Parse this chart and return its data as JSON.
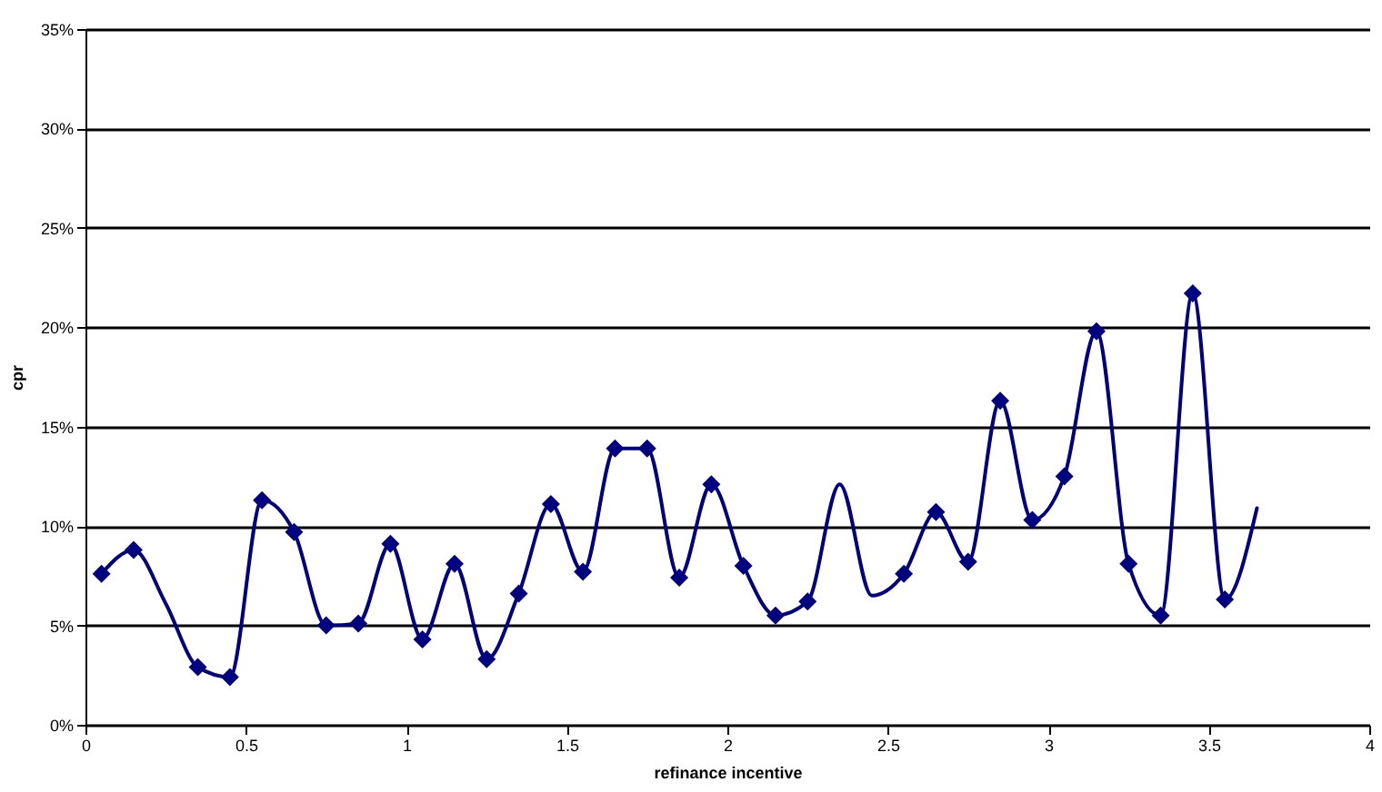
{
  "chart_data": {
    "type": "line",
    "xlabel": "refinance incentive",
    "ylabel": "cpr",
    "series": [
      {
        "color": "#000080",
        "marker": "none",
        "x": [
          0.05,
          0.15,
          0.25,
          0.35,
          0.45,
          0.55,
          0.65,
          0.75,
          0.85,
          0.95,
          1.05,
          1.15,
          1.25,
          1.35,
          1.45,
          1.55,
          1.65,
          1.75,
          1.85,
          1.95,
          2.05,
          2.15,
          2.25,
          2.35,
          2.45,
          2.55,
          2.65,
          2.75,
          2.85,
          2.95,
          3.05,
          3.15,
          3.25,
          3.35,
          3.45,
          3.55,
          3.65
        ],
        "values": [
          7.6,
          8.8,
          6.1,
          2.9,
          2.4,
          11.3,
          9.7,
          5.0,
          5.1,
          9.1,
          4.3,
          8.1,
          3.3,
          6.6,
          11.1,
          7.7,
          13.9,
          13.9,
          7.4,
          12.1,
          8.0,
          5.5,
          6.2,
          12.1,
          6.5,
          7.6,
          10.7,
          8.2,
          16.3,
          10.3,
          12.5,
          19.8,
          8.1,
          5.5,
          21.7,
          6.3,
          10.9
        ]
      },
      {
        "type": "scatter",
        "color": "#000080",
        "marker": "diamond",
        "x": [
          0.05,
          0.15,
          0.35,
          0.45,
          0.55,
          0.65,
          0.75,
          0.85,
          0.95,
          1.05,
          1.15,
          1.25,
          1.35,
          1.45,
          1.55,
          1.65,
          1.75,
          1.85,
          1.95,
          2.05,
          2.15,
          2.25,
          2.55,
          2.65,
          2.75,
          2.85,
          2.95,
          3.05,
          3.15,
          3.25,
          3.35,
          3.45,
          3.55
        ],
        "values": [
          7.6,
          8.8,
          2.9,
          2.4,
          11.3,
          9.7,
          5.0,
          5.1,
          9.1,
          4.3,
          8.1,
          3.3,
          6.6,
          11.1,
          7.7,
          13.9,
          13.9,
          7.4,
          12.1,
          8.0,
          5.5,
          6.2,
          7.6,
          10.7,
          8.2,
          16.3,
          10.3,
          12.5,
          19.8,
          8.1,
          5.5,
          21.7,
          6.3
        ]
      }
    ],
    "xlim": [
      0,
      4
    ],
    "xticks": [
      0,
      0.5,
      1,
      1.5,
      2,
      2.5,
      3,
      3.5,
      4
    ],
    "ylim": [
      0,
      35
    ],
    "yticks": [
      {
        "value": 0,
        "label": "0%"
      },
      {
        "value": 5,
        "label": "5%"
      },
      {
        "value": 10,
        "label": "10%"
      },
      {
        "value": 15,
        "label": "15%"
      },
      {
        "value": 20,
        "label": "20%"
      },
      {
        "value": 25,
        "label": "25%"
      },
      {
        "value": 30,
        "label": "30%"
      },
      {
        "value": 35,
        "label": "35%"
      }
    ],
    "grid": "y"
  }
}
